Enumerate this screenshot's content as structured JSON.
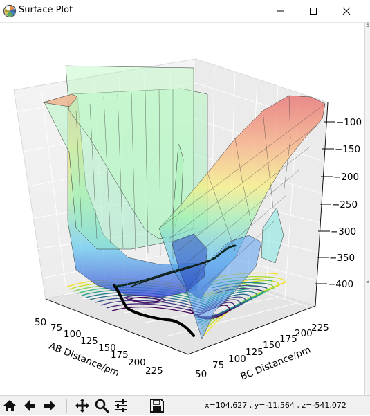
{
  "window": {
    "title": "Surface Plot",
    "icon": "matplotlib-logo-icon",
    "controls": [
      "minimize-icon",
      "maximize-icon",
      "close-icon"
    ]
  },
  "right_strip": {
    "glyph_top": "S",
    "glyph_mid": "a"
  },
  "chart_data": {
    "type": "surface3d",
    "title": "",
    "xlabel": "AB Distance/pm",
    "ylabel": "BC Distance/pm",
    "zlabel": "",
    "x_ticks": [
      "50",
      "75",
      "100",
      "125",
      "150",
      "175",
      "200",
      "225"
    ],
    "y_ticks": [
      "50",
      "75",
      "100",
      "125",
      "150",
      "175",
      "200",
      "225"
    ],
    "z_ticks": [
      "−100",
      "−150",
      "−200",
      "−250",
      "−300",
      "−350",
      "−400"
    ],
    "colormap_surface": "jet",
    "colormap_contour": "viridis",
    "grid": true
  },
  "toolbar": {
    "buttons": [
      {
        "name": "home-icon",
        "label": "Home"
      },
      {
        "name": "back-icon",
        "label": "Back"
      },
      {
        "name": "forward-icon",
        "label": "Forward"
      },
      {
        "name": "pan-icon",
        "label": "Pan"
      },
      {
        "name": "zoom-icon",
        "label": "Zoom"
      },
      {
        "name": "configure-subplots-icon",
        "label": "Configure subplots"
      },
      {
        "name": "save-icon",
        "label": "Save"
      }
    ],
    "coords": {
      "x": "x=104.627",
      "y": ", y=-11.564",
      "z": ", z=-541.072"
    }
  }
}
